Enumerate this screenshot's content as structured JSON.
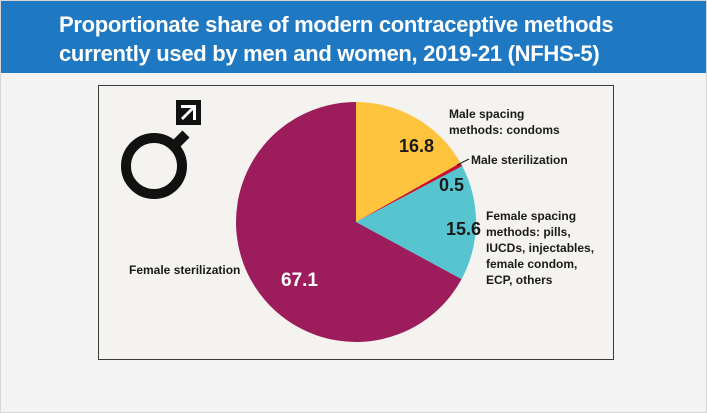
{
  "title_line1": "Proportionate share of modern contraceptive methods",
  "title_line2": "currently used by men and women, 2019-21 (NFHS-5)",
  "icon": "male-symbol-icon",
  "colors": {
    "header": "#1f78c2",
    "female_sterilization": "#9d1d5c",
    "female_spacing": "#56c5cf",
    "male_sterilization": "#c8102e",
    "male_spacing": "#fec43e"
  },
  "chart_data": {
    "type": "pie",
    "slices": [
      {
        "label": "Male spacing methods: condoms",
        "label_lines": [
          "Male spacing",
          "methods: condoms"
        ],
        "value": 16.8,
        "value_text": "16.8",
        "color": "#fec43e"
      },
      {
        "label": "Male sterilization",
        "label_lines": [
          "Male sterilization"
        ],
        "value": 0.5,
        "value_text": "0.5",
        "color": "#c8102e"
      },
      {
        "label": "Female spacing methods: pills, IUCDs, injectables, female condom, ECP, others",
        "label_lines": [
          "Female spacing",
          "methods: pills,",
          "IUCDs, injectables,",
          "female condom,",
          "ECP, others"
        ],
        "value": 15.6,
        "value_text": "15.6",
        "color": "#56c5cf"
      },
      {
        "label": "Female sterilization",
        "label_lines": [
          "Female sterilization"
        ],
        "value": 67.1,
        "value_text": "67.1",
        "color": "#9d1d5c"
      }
    ],
    "start_angle_deg": 0,
    "direction": "clockwise"
  }
}
